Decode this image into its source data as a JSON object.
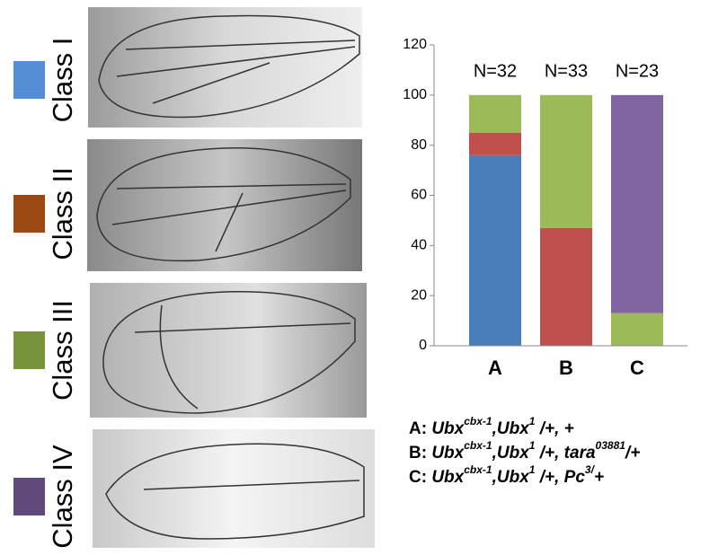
{
  "chart_data": {
    "type": "stacked-bar",
    "categories": [
      "A",
      "B",
      "C"
    ],
    "series": [
      {
        "name": "Class I",
        "color": "#4a7ebb",
        "swatch_color": "#558ed5",
        "values": [
          76,
          0,
          0
        ]
      },
      {
        "name": "Class II",
        "color": "#c0504d",
        "swatch_color": "#9c4a14",
        "values": [
          9,
          47,
          0
        ]
      },
      {
        "name": "Class III",
        "color": "#9bbb59",
        "swatch_color": "#77933c",
        "values": [
          15,
          53,
          13
        ]
      },
      {
        "name": "Class IV",
        "color": "#8064a2",
        "swatch_color": "#604a7b",
        "values": [
          0,
          0,
          87
        ]
      }
    ],
    "n_labels": [
      "N=32",
      "N=33",
      "N=23"
    ],
    "ylim": [
      0,
      120
    ],
    "yticks": [
      0,
      20,
      40,
      60,
      80,
      100,
      120
    ],
    "grid": false
  },
  "genotypes": [
    {
      "prefix": "A: ",
      "parts": [
        {
          "t": "Ubx"
        },
        {
          "t": "cbx-1",
          "sup": true
        },
        {
          "t": ",Ubx"
        },
        {
          "t": "1",
          "sup": true
        },
        {
          "t": " /+, +"
        }
      ]
    },
    {
      "prefix": "B: ",
      "parts": [
        {
          "t": "Ubx"
        },
        {
          "t": "cbx-1",
          "sup": true
        },
        {
          "t": ",Ubx"
        },
        {
          "t": "1",
          "sup": true
        },
        {
          "t": " /+, tara"
        },
        {
          "t": "03881",
          "sup": true
        },
        {
          "t": "/+"
        }
      ]
    },
    {
      "prefix": "C: ",
      "parts": [
        {
          "t": "Ubx"
        },
        {
          "t": "cbx-1",
          "sup": true
        },
        {
          "t": ",Ubx"
        },
        {
          "t": "1",
          "sup": true
        },
        {
          "t": " /+, Pc"
        },
        {
          "t": "3/",
          "sup": true
        },
        {
          "t": "+"
        }
      ]
    }
  ]
}
